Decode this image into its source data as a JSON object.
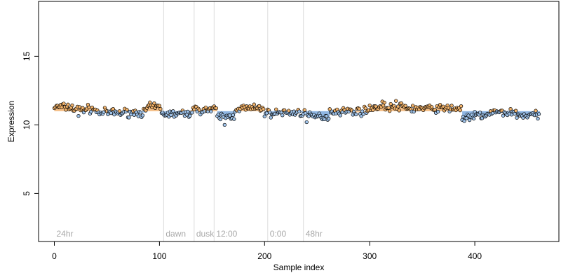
{
  "chart_data": {
    "type": "scatter",
    "xlabel": "Sample index",
    "ylabel": "Expression",
    "xlim": [
      -15,
      480
    ],
    "ylim": [
      1.5,
      19
    ],
    "xticks": [
      0,
      100,
      200,
      300,
      400
    ],
    "yticks": [
      5,
      10,
      15
    ],
    "xtick_labels": [
      "0",
      "100",
      "200",
      "300",
      "400"
    ],
    "ytick_labels": [
      "5",
      "10",
      "15"
    ],
    "baseline": 11.0,
    "n_points": 462,
    "colors": {
      "above_baseline": "#f2b36b",
      "below_baseline": "#9fc3ea",
      "segment_above": "#f4bd84",
      "segment_below": "#8fb6e2",
      "phase_line": "#dcdcdc",
      "phase_text": "#a8a8a8",
      "point_stroke": "#000000"
    },
    "phase_markers": [
      {
        "x": 0,
        "label": "24hr",
        "line": false
      },
      {
        "x": 104,
        "label": "dawn",
        "line": true
      },
      {
        "x": 133,
        "label": "dusk",
        "line": true
      },
      {
        "x": 152,
        "label": "12:00",
        "line": true
      },
      {
        "x": 203,
        "label": "0:00",
        "line": true
      },
      {
        "x": 237,
        "label": "48hr",
        "line": true
      }
    ],
    "segments": [
      [
        0,
        18,
        11.3
      ],
      [
        18,
        40,
        11.15
      ],
      [
        40,
        88,
        10.9
      ],
      [
        88,
        102,
        11.3
      ],
      [
        102,
        130,
        10.8
      ],
      [
        130,
        155,
        11.1
      ],
      [
        155,
        172,
        10.6
      ],
      [
        172,
        200,
        11.2
      ],
      [
        200,
        212,
        10.85
      ],
      [
        212,
        240,
        10.9
      ],
      [
        240,
        262,
        10.6
      ],
      [
        262,
        300,
        11.0
      ],
      [
        300,
        335,
        11.3
      ],
      [
        335,
        388,
        11.2
      ],
      [
        388,
        400,
        10.5
      ],
      [
        400,
        415,
        10.7
      ],
      [
        415,
        440,
        10.9
      ],
      [
        440,
        462,
        10.7
      ]
    ],
    "outliers": [
      {
        "x": 162,
        "y": 10.0
      },
      {
        "x": 240,
        "y": 10.2
      },
      {
        "x": 23,
        "y": 10.65
      },
      {
        "x": 312,
        "y": 11.7
      },
      {
        "x": 325,
        "y": 11.75
      }
    ]
  }
}
